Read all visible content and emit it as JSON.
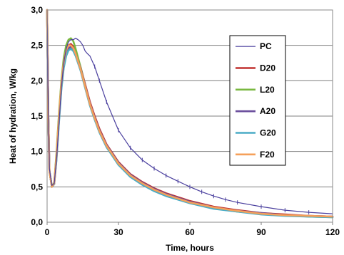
{
  "chart_data": {
    "type": "line",
    "title": "",
    "xlabel": "Time, hours",
    "ylabel": "Heat of hydration, W/kg",
    "xlim": [
      0,
      120
    ],
    "ylim": [
      0,
      3.0
    ],
    "x_ticks": [
      "0",
      "30",
      "60",
      "90",
      "120"
    ],
    "y_ticks": [
      "0,0",
      "0,5",
      "1,0",
      "1,5",
      "2,0",
      "2,5",
      "3,0"
    ],
    "grid": "horizontal",
    "legend_position": "right",
    "series": [
      {
        "name": "PC",
        "color": "#4a3f9e",
        "marker": "tick",
        "x": [
          0,
          0.5,
          1,
          2,
          3,
          4,
          5,
          6,
          7,
          8,
          9,
          10,
          11,
          12,
          13,
          14,
          15,
          16,
          17,
          18,
          20,
          22,
          25,
          30,
          35,
          40,
          45,
          50,
          55,
          60,
          65,
          70,
          75,
          80,
          90,
          100,
          110,
          120
        ],
        "y": [
          3.0,
          1.6,
          0.75,
          0.52,
          0.55,
          0.9,
          1.4,
          1.9,
          2.25,
          2.45,
          2.55,
          2.58,
          2.58,
          2.6,
          2.58,
          2.55,
          2.5,
          2.42,
          2.38,
          2.35,
          2.2,
          2.0,
          1.7,
          1.3,
          1.05,
          0.88,
          0.76,
          0.66,
          0.58,
          0.5,
          0.43,
          0.37,
          0.32,
          0.28,
          0.22,
          0.17,
          0.14,
          0.12
        ]
      },
      {
        "name": "D20",
        "color": "#c0302e",
        "x": [
          0,
          0.5,
          1,
          2,
          3,
          4,
          5,
          6,
          7,
          8,
          9,
          10,
          11,
          12,
          14,
          16,
          18,
          20,
          22,
          25,
          30,
          35,
          40,
          45,
          50,
          60,
          70,
          80,
          90,
          100,
          110,
          120
        ],
        "y": [
          3.0,
          1.5,
          0.72,
          0.5,
          0.55,
          0.95,
          1.5,
          1.95,
          2.25,
          2.42,
          2.5,
          2.52,
          2.48,
          2.4,
          2.2,
          1.95,
          1.7,
          1.5,
          1.32,
          1.1,
          0.85,
          0.68,
          0.57,
          0.48,
          0.41,
          0.3,
          0.22,
          0.17,
          0.13,
          0.11,
          0.09,
          0.08
        ]
      },
      {
        "name": "L20",
        "color": "#7ab840",
        "x": [
          0,
          0.5,
          1,
          2,
          3,
          4,
          5,
          6,
          7,
          8,
          9,
          10,
          11,
          12,
          14,
          16,
          18,
          20,
          22,
          25,
          30,
          35,
          40,
          45,
          50,
          60,
          70,
          80,
          90,
          100,
          110,
          120
        ],
        "y": [
          3.0,
          1.5,
          0.72,
          0.5,
          0.56,
          1.0,
          1.55,
          2.0,
          2.32,
          2.5,
          2.58,
          2.6,
          2.56,
          2.45,
          2.2,
          1.93,
          1.67,
          1.46,
          1.28,
          1.07,
          0.82,
          0.65,
          0.54,
          0.45,
          0.38,
          0.27,
          0.2,
          0.15,
          0.12,
          0.1,
          0.08,
          0.07
        ]
      },
      {
        "name": "A20",
        "color": "#6a4e9c",
        "x": [
          0,
          0.5,
          1,
          2,
          3,
          4,
          5,
          6,
          7,
          8,
          9,
          10,
          11,
          12,
          14,
          16,
          18,
          20,
          22,
          25,
          30,
          35,
          40,
          45,
          50,
          60,
          70,
          80,
          90,
          100,
          110,
          120
        ],
        "y": [
          3.0,
          1.5,
          0.72,
          0.5,
          0.54,
          0.92,
          1.45,
          1.9,
          2.2,
          2.38,
          2.46,
          2.48,
          2.45,
          2.38,
          2.18,
          1.93,
          1.68,
          1.48,
          1.3,
          1.09,
          0.84,
          0.67,
          0.56,
          0.47,
          0.4,
          0.29,
          0.21,
          0.16,
          0.13,
          0.1,
          0.09,
          0.08
        ]
      },
      {
        "name": "G20",
        "color": "#4aacc6",
        "x": [
          0,
          0.5,
          1,
          2,
          3,
          4,
          5,
          6,
          7,
          8,
          9,
          10,
          11,
          12,
          14,
          16,
          18,
          20,
          22,
          25,
          30,
          35,
          40,
          45,
          50,
          60,
          70,
          80,
          90,
          100,
          110,
          120
        ],
        "y": [
          3.0,
          1.5,
          0.72,
          0.5,
          0.54,
          0.9,
          1.42,
          1.88,
          2.18,
          2.35,
          2.43,
          2.45,
          2.42,
          2.35,
          2.15,
          1.9,
          1.65,
          1.45,
          1.27,
          1.06,
          0.81,
          0.64,
          0.53,
          0.44,
          0.37,
          0.27,
          0.19,
          0.15,
          0.11,
          0.09,
          0.08,
          0.07
        ]
      },
      {
        "name": "F20",
        "color": "#f5a05a",
        "x": [
          0,
          0.5,
          1,
          2,
          3,
          4,
          5,
          6,
          7,
          8,
          9,
          10,
          11,
          12,
          14,
          16,
          18,
          20,
          22,
          25,
          30,
          35,
          40,
          45,
          50,
          60,
          70,
          80,
          90,
          100,
          110,
          120
        ],
        "y": [
          3.0,
          1.5,
          0.72,
          0.5,
          0.55,
          0.96,
          1.5,
          1.96,
          2.26,
          2.43,
          2.5,
          2.5,
          2.46,
          2.38,
          2.17,
          1.92,
          1.67,
          1.47,
          1.29,
          1.08,
          0.83,
          0.66,
          0.55,
          0.46,
          0.39,
          0.28,
          0.21,
          0.16,
          0.12,
          0.1,
          0.09,
          0.08
        ]
      }
    ]
  }
}
